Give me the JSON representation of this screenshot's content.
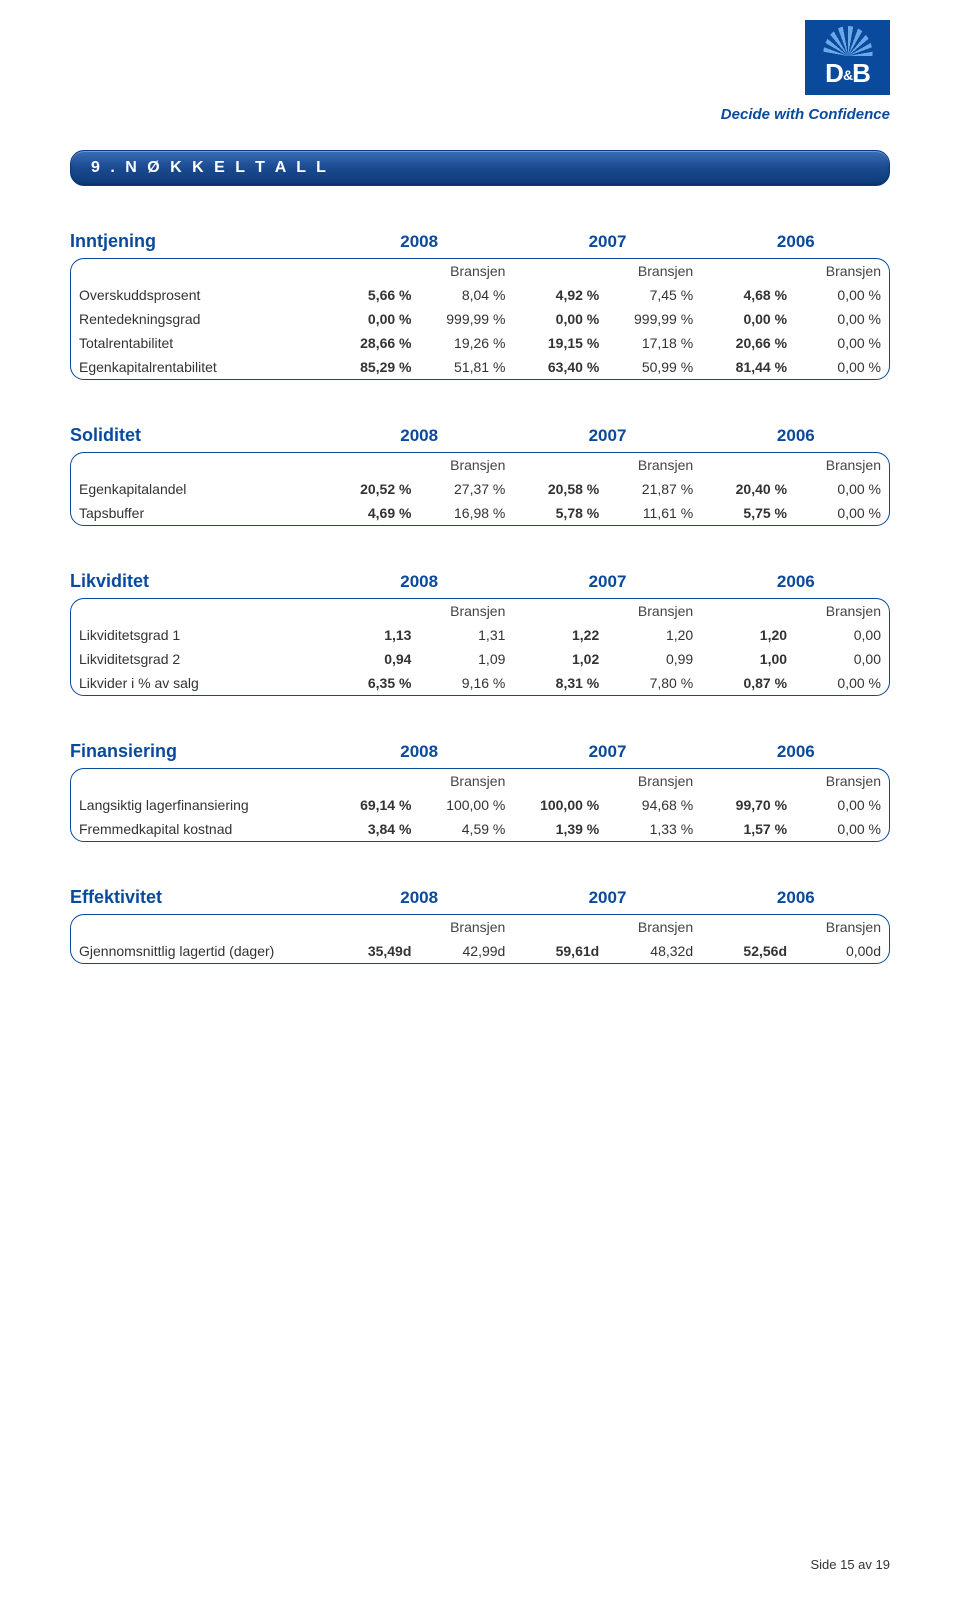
{
  "logo": {
    "letters_d": "D",
    "and": "&",
    "letters_b": "B",
    "tagline": "Decide with Confidence"
  },
  "header": {
    "title": "9 .  N Ø K K E L T A L L"
  },
  "years": [
    "2008",
    "2007",
    "2006"
  ],
  "branch_label": "Bransjen",
  "sections": {
    "inntjening": {
      "title": "Inntjening",
      "rows": [
        {
          "label": "Overskuddsprosent",
          "values": [
            "5,66 %",
            "8,04 %",
            "4,92 %",
            "7,45 %",
            "4,68 %",
            "0,00 %"
          ]
        },
        {
          "label": "Rentedekningsgrad",
          "values": [
            "0,00 %",
            "999,99 %",
            "0,00 %",
            "999,99 %",
            "0,00 %",
            "0,00 %"
          ]
        },
        {
          "label": "Totalrentabilitet",
          "values": [
            "28,66 %",
            "19,26 %",
            "19,15 %",
            "17,18 %",
            "20,66 %",
            "0,00 %"
          ]
        },
        {
          "label": "Egenkapitalrentabilitet",
          "values": [
            "85,29 %",
            "51,81 %",
            "63,40 %",
            "50,99 %",
            "81,44 %",
            "0,00 %"
          ]
        }
      ]
    },
    "soliditet": {
      "title": "Soliditet",
      "rows": [
        {
          "label": "Egenkapitalandel",
          "values": [
            "20,52 %",
            "27,37 %",
            "20,58 %",
            "21,87 %",
            "20,40 %",
            "0,00 %"
          ]
        },
        {
          "label": "Tapsbuffer",
          "values": [
            "4,69 %",
            "16,98 %",
            "5,78 %",
            "11,61 %",
            "5,75 %",
            "0,00 %"
          ]
        }
      ]
    },
    "likviditet": {
      "title": "Likviditet",
      "rows": [
        {
          "label": "Likviditetsgrad 1",
          "values": [
            "1,13",
            "1,31",
            "1,22",
            "1,20",
            "1,20",
            "0,00"
          ]
        },
        {
          "label": "Likviditetsgrad 2",
          "values": [
            "0,94",
            "1,09",
            "1,02",
            "0,99",
            "1,00",
            "0,00"
          ]
        },
        {
          "label": "Likvider i % av salg",
          "values": [
            "6,35 %",
            "9,16 %",
            "8,31 %",
            "7,80 %",
            "0,87 %",
            "0,00 %"
          ]
        }
      ]
    },
    "finansiering": {
      "title": "Finansiering",
      "rows": [
        {
          "label": "Langsiktig lagerfinansiering",
          "values": [
            "69,14 %",
            "100,00 %",
            "100,00 %",
            "94,68 %",
            "99,70 %",
            "0,00 %"
          ]
        },
        {
          "label": "Fremmedkapital kostnad",
          "values": [
            "3,84 %",
            "4,59 %",
            "1,39 %",
            "1,33 %",
            "1,57 %",
            "0,00 %"
          ]
        }
      ]
    },
    "effektivitet": {
      "title": "Effektivitet",
      "rows": [
        {
          "label": "Gjennomsnittlig lagertid (dager)",
          "values": [
            "35,49d",
            "42,99d",
            "59,61d",
            "48,32d",
            "52,56d",
            "0,00d"
          ]
        }
      ]
    }
  },
  "footer": {
    "page": "Side 15 av 19"
  },
  "colors": {
    "brand_blue": "#0a4a9c",
    "header_grad_top": "#3a6db8",
    "header_grad_mid": "#1a4a8f",
    "header_grad_bot": "#0d3a7a",
    "text": "#333333",
    "border": "#0a4a9c",
    "bg": "#ffffff"
  }
}
